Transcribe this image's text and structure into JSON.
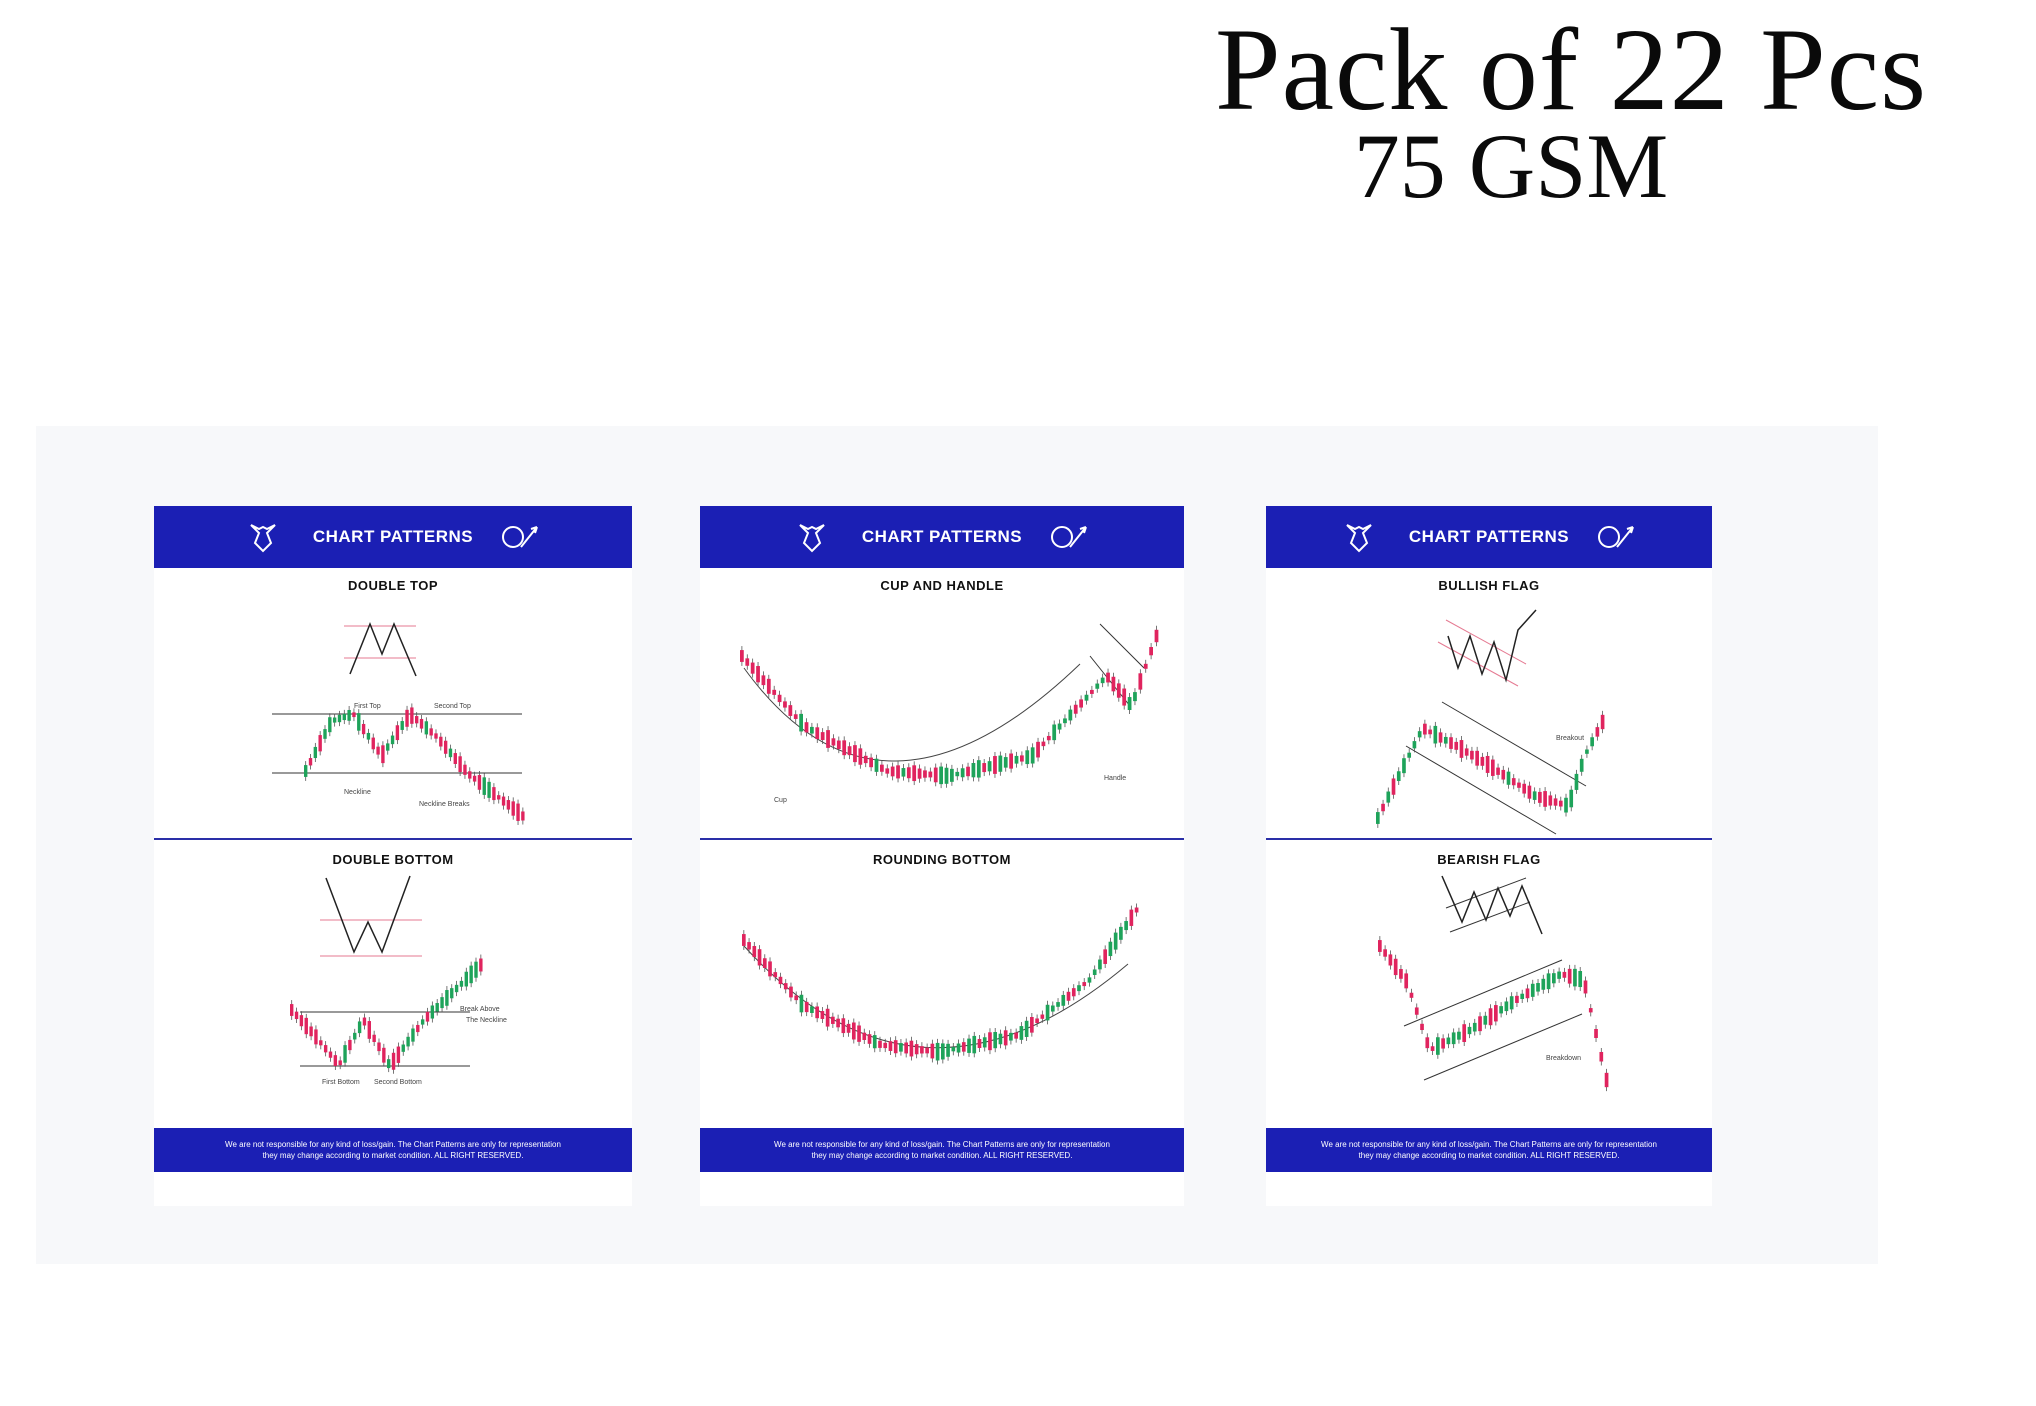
{
  "headline": {
    "line1": "Pack of 22 Pcs",
    "line2": "75 GSM"
  },
  "header_title": "CHART PATTERNS",
  "footer": {
    "line1": "We are not responsible for any kind of loss/gain. The Chart Patterns are only for representation",
    "line2": "they may change according to market condition. ALL RIGHT RESERVED."
  },
  "sheets": [
    {
      "top": {
        "title": "DOUBLE TOP",
        "labels": [
          "First Top",
          "Second Top",
          "Neckline",
          "Neckline Breaks"
        ]
      },
      "bottom": {
        "title": "DOUBLE BOTTOM",
        "labels": [
          "Break Above",
          "The Neckline",
          "First Bottom",
          "Second Bottom"
        ]
      }
    },
    {
      "top": {
        "title": "CUP AND HANDLE",
        "labels": [
          "Cup",
          "Handle"
        ]
      },
      "bottom": {
        "title": "ROUNDING BOTTOM",
        "labels": []
      }
    },
    {
      "top": {
        "title": "BULLISH FLAG",
        "labels": [
          "Breakout"
        ]
      },
      "bottom": {
        "title": "BEARISH FLAG",
        "labels": [
          "Breakdown"
        ]
      }
    }
  ],
  "colors": {
    "band": "#1b1fb4",
    "bull": "#1ea35a",
    "bear": "#e0245e",
    "guide": "#e57a92"
  },
  "icons": [
    "bull-icon",
    "bear-icon"
  ]
}
